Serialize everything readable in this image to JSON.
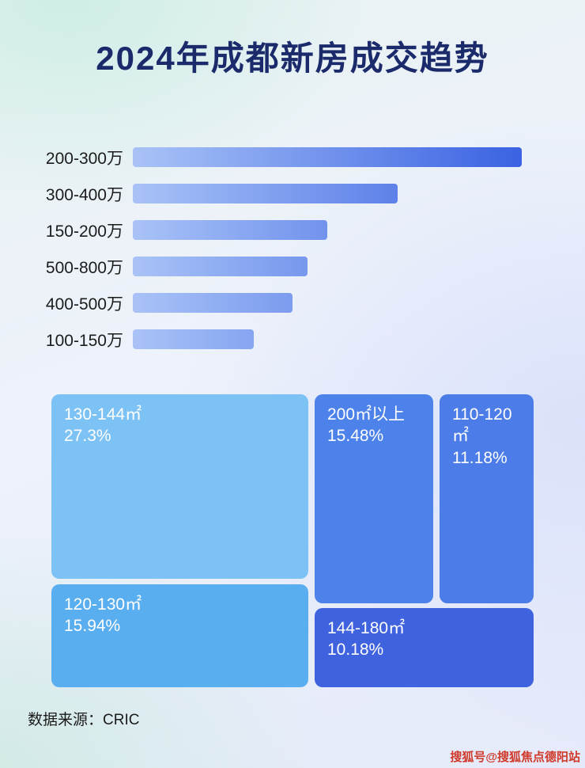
{
  "title": "2024年成都新房成交趋势",
  "colors": {
    "title": "#1b2a6b",
    "bar_gradient_from": "#a9c3f7",
    "bar_gradient_to": "#3a62e2",
    "watermark": "#cf3a2a"
  },
  "chart_data": [
    {
      "type": "bar",
      "orientation": "horizontal",
      "title": "2024年成都新房成交趋势",
      "categories": [
        "200-300万",
        "300-400万",
        "150-200万",
        "500-800万",
        "400-500万",
        "100-150万"
      ],
      "values": [
        100,
        68,
        50,
        45,
        41,
        31
      ],
      "value_unit": "relative bar length, % of longest bar (no numeric axis labels shown)",
      "xlabel": "",
      "ylabel": "",
      "grid": false,
      "legend": false
    },
    {
      "type": "treemap",
      "title": "",
      "cells": [
        {
          "label": "130-144㎡",
          "value": 27.3,
          "value_text": "27.3%",
          "color": "#7cc2f4"
        },
        {
          "label": "120-130㎡",
          "value": 15.94,
          "value_text": "15.94%",
          "color": "#59aef0"
        },
        {
          "label": "200㎡以上",
          "value": 15.48,
          "value_text": "15.48%",
          "color": "#4c82e9"
        },
        {
          "label": "110-120㎡",
          "value": 11.18,
          "value_text": "11.18%",
          "color": "#4b7ce7"
        },
        {
          "label": "144-180㎡",
          "value": 10.18,
          "value_text": "10.18%",
          "color": "#3f62de"
        }
      ]
    }
  ],
  "footer": {
    "source_label": "数据来源：CRIC"
  },
  "watermark": {
    "text": "搜狐号@搜狐焦点德阳站"
  }
}
